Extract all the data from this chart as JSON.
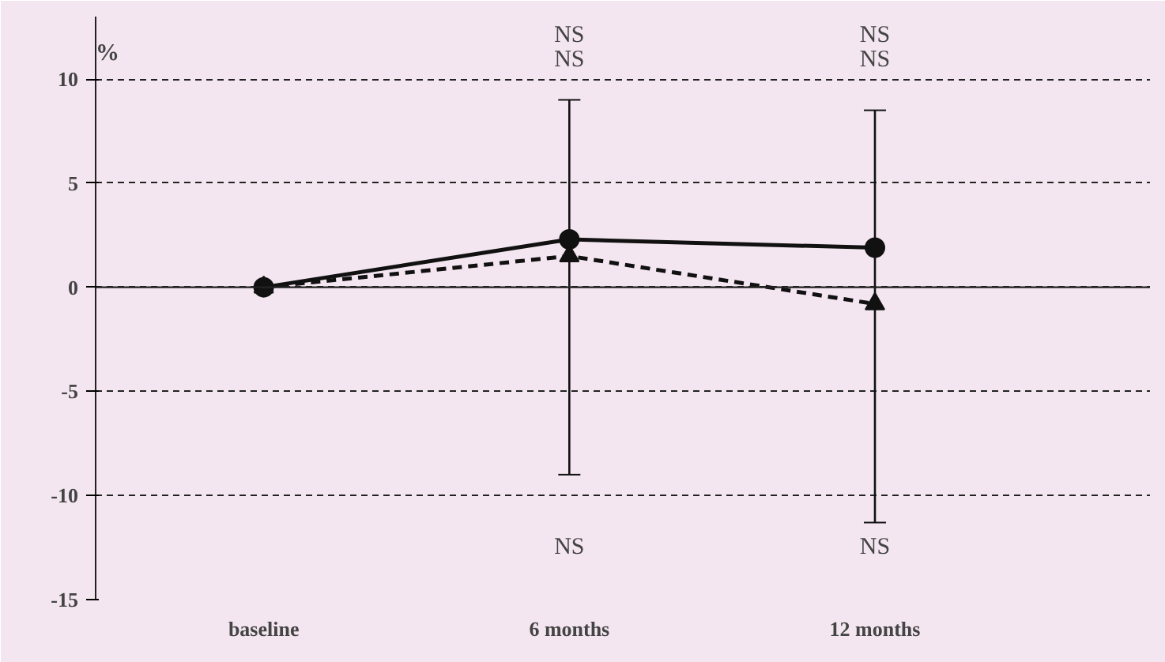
{
  "chart_data": {
    "type": "line",
    "ylabel": "%",
    "categories": [
      "baseline",
      "6 months",
      "12 months"
    ],
    "series": [
      {
        "color": "#111111",
        "values": [
          0,
          2.3,
          1.9
        ],
        "marker": "circle",
        "line_style": "solid",
        "errors": [
          null,
          [
            -9,
            9
          ],
          [
            -11.3,
            8.5
          ]
        ]
      },
      {
        "color": "#111111",
        "values": [
          0,
          1.5,
          -0.8
        ],
        "marker": "triangle",
        "line_style": "dashed"
      }
    ],
    "ylim": [
      -15,
      13
    ],
    "yticks": [
      -15,
      -10,
      -5,
      0,
      5,
      10
    ],
    "grid": "y",
    "ref_lines": [
      {
        "axis": "y",
        "value": 0,
        "line_style": "solid"
      }
    ],
    "annotations": [
      "NS",
      "NS",
      "NS",
      "NS",
      "NS",
      "NS"
    ]
  }
}
